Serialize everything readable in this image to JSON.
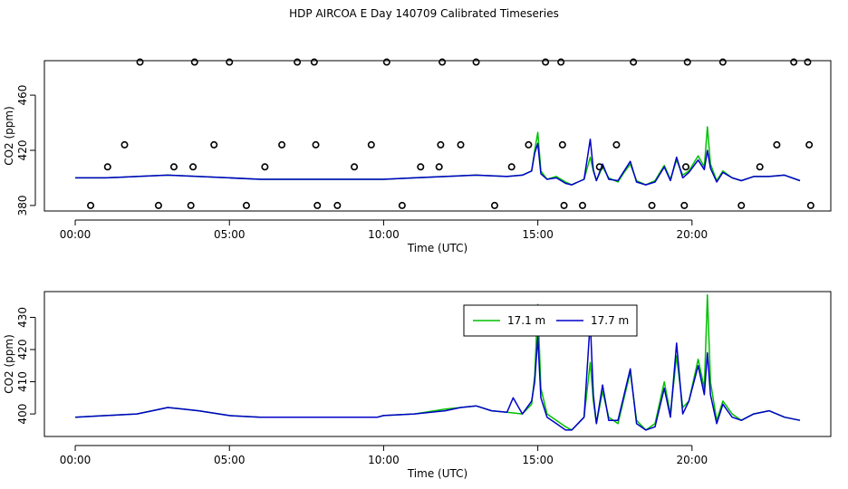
{
  "title": "HDP AIRCOA E  Day 140709  Calibrated Timeseries",
  "chart_data": [
    {
      "type": "scatter",
      "xlabel": "Time (UTC)",
      "ylabel": "CO2 (ppm)",
      "xlim": [
        -1.0,
        24.5
      ],
      "ylim": [
        376.0,
        485.0
      ],
      "xticks": [
        0,
        5,
        10,
        15,
        20
      ],
      "xtick_labels": [
        "00:00",
        "05:00",
        "10:00",
        "15:00",
        "20:00"
      ],
      "yticks": [
        380,
        420,
        460
      ],
      "ytick_labels": [
        "380",
        "420",
        "460"
      ],
      "grid": false,
      "series": [
        {
          "name": "17.1 m",
          "color": "#00c000",
          "style": "line",
          "x": [
            0,
            1,
            2,
            3,
            4,
            5,
            6,
            7,
            8,
            9,
            10,
            11,
            12,
            13,
            14,
            14.5,
            14.8,
            14.9,
            15,
            15.1,
            15.3,
            15.6,
            15.9,
            16.1,
            16.3,
            16.5,
            16.7,
            16.8,
            16.9,
            17.1,
            17.3,
            17.6,
            17.8,
            18,
            18.2,
            18.5,
            18.8,
            19.1,
            19.3,
            19.5,
            19.7,
            19.9,
            20.2,
            20.4,
            20.5,
            20.6,
            20.8,
            21,
            21.3,
            21.6,
            22,
            22.5,
            23,
            23.5
          ],
          "y": [
            400,
            400,
            401,
            402,
            401,
            400,
            399,
            399,
            399,
            399,
            399,
            400,
            401,
            402,
            401,
            402,
            405,
            420,
            433,
            405,
            399,
            401,
            397,
            395,
            397,
            399,
            415,
            405,
            398,
            408,
            400,
            397,
            404,
            410,
            398,
            395,
            398,
            409,
            399,
            413,
            402,
            405,
            416,
            408,
            437,
            410,
            398,
            405,
            400,
            398,
            401,
            401,
            402,
            398
          ]
        },
        {
          "name": "17.7 m",
          "color": "#0000c8",
          "style": "line",
          "x": [
            0,
            1,
            2,
            3,
            4,
            5,
            6,
            7,
            8,
            9,
            10,
            11,
            12,
            13,
            14,
            14.5,
            14.8,
            14.9,
            15,
            15.1,
            15.3,
            15.6,
            15.9,
            16.1,
            16.3,
            16.5,
            16.7,
            16.8,
            16.9,
            17.1,
            17.3,
            17.6,
            17.8,
            18,
            18.2,
            18.5,
            18.8,
            19.1,
            19.3,
            19.5,
            19.7,
            19.9,
            20.2,
            20.4,
            20.5,
            20.6,
            20.8,
            21,
            21.3,
            21.6,
            22,
            22.5,
            23,
            23.5
          ],
          "y": [
            400,
            400,
            401,
            402,
            401,
            400,
            399,
            399,
            399,
            399,
            399,
            400,
            401,
            402,
            401,
            402,
            405,
            418,
            425,
            403,
            399,
            400,
            396,
            395,
            397,
            399,
            428,
            406,
            398,
            410,
            399,
            398,
            405,
            412,
            397,
            395,
            397,
            408,
            398,
            415,
            400,
            404,
            413,
            406,
            420,
            407,
            397,
            404,
            400,
            398,
            401,
            401,
            402,
            398
          ]
        },
        {
          "name": "",
          "color": "#000000",
          "style": "open-circles",
          "x": [
            0.5,
            1.05,
            1.6,
            2.1,
            2.7,
            3.2,
            3.75,
            3.82,
            3.87,
            4.5,
            5.0,
            5.55,
            6.15,
            6.7,
            7.2,
            7.75,
            7.8,
            7.85,
            8.5,
            9.05,
            9.6,
            10.1,
            10.6,
            11.2,
            11.8,
            11.85,
            11.9,
            12.5,
            13.0,
            13.6,
            14.15,
            14.7,
            15.25,
            15.75,
            15.8,
            15.85,
            16.45,
            17.0,
            17.55,
            18.1,
            18.7,
            19.75,
            19.8,
            19.85,
            21.0,
            21.6,
            22.2,
            22.75,
            23.3,
            23.75,
            23.8,
            23.85
          ],
          "y": [
            380,
            408,
            424,
            484,
            380,
            408,
            380,
            408,
            484,
            424,
            484,
            380,
            408,
            424,
            484,
            484,
            424,
            380,
            380,
            408,
            424,
            484,
            380,
            408,
            408,
            424,
            484,
            424,
            484,
            380,
            408,
            424,
            484,
            484,
            424,
            380,
            380,
            408,
            424,
            484,
            380,
            380,
            408,
            484,
            484,
            380,
            408,
            424,
            484,
            484,
            424,
            380
          ]
        }
      ]
    },
    {
      "type": "line",
      "xlabel": "Time (UTC)",
      "ylabel": "CO2 (ppm)",
      "xlim": [
        -1.0,
        24.5
      ],
      "ylim": [
        393.0,
        438.0
      ],
      "xticks": [
        0,
        5,
        10,
        15,
        20
      ],
      "xtick_labels": [
        "00:00",
        "05:00",
        "10:00",
        "15:00",
        "20:00"
      ],
      "yticks": [
        400,
        410,
        420,
        430
      ],
      "ytick_labels": [
        "400",
        "410",
        "420",
        "430"
      ],
      "grid": false,
      "legend_position": "top-center",
      "series": [
        {
          "name": "17.1 m",
          "color": "#00c000",
          "x": [
            0,
            1,
            2,
            2.5,
            3,
            3.5,
            4,
            5,
            6,
            7,
            8,
            9,
            9.8,
            10,
            11,
            12,
            12.5,
            13,
            13.5,
            14,
            14.5,
            14.8,
            14.9,
            15,
            15.1,
            15.3,
            15.6,
            15.9,
            16.1,
            16.3,
            16.5,
            16.7,
            16.8,
            16.9,
            17.1,
            17.3,
            17.6,
            17.8,
            18,
            18.2,
            18.5,
            18.8,
            19.1,
            19.3,
            19.5,
            19.7,
            19.9,
            20.2,
            20.4,
            20.5,
            20.6,
            20.8,
            21,
            21.3,
            21.6,
            22,
            22.5,
            23,
            23.5
          ],
          "y": [
            399,
            399.5,
            400,
            401,
            402,
            401.5,
            401,
            399.5,
            399,
            399,
            399,
            399,
            399,
            399.5,
            400,
            401.5,
            402,
            402.5,
            401,
            400.5,
            400,
            403,
            412,
            434,
            408,
            400,
            398,
            396,
            395,
            397,
            399,
            416,
            404,
            397,
            407,
            399,
            397,
            405,
            413,
            398,
            395,
            397,
            410,
            400,
            418,
            402,
            404,
            417,
            408,
            437,
            410,
            398,
            404,
            400,
            398,
            400,
            401,
            399,
            398
          ]
        },
        {
          "name": "17.7 m",
          "color": "#0000c8",
          "x": [
            0,
            1,
            2,
            2.5,
            3,
            3.5,
            4,
            5,
            6,
            7,
            8,
            9,
            9.8,
            10,
            11,
            12,
            12.5,
            13,
            13.5,
            14,
            14.2,
            14.5,
            14.8,
            14.9,
            15,
            15.1,
            15.3,
            15.6,
            15.9,
            16.1,
            16.3,
            16.5,
            16.7,
            16.8,
            16.9,
            17.1,
            17.3,
            17.6,
            17.8,
            18,
            18.2,
            18.5,
            18.8,
            19.1,
            19.3,
            19.5,
            19.7,
            19.9,
            20.2,
            20.4,
            20.5,
            20.6,
            20.8,
            21,
            21.3,
            21.6,
            22,
            22.5,
            23,
            23.5
          ],
          "y": [
            399,
            399.5,
            400,
            401,
            402,
            401.5,
            401,
            399.5,
            399,
            399,
            399,
            399,
            399,
            399.5,
            400,
            401,
            402,
            402.5,
            401,
            400.5,
            405,
            400,
            404,
            410,
            424,
            405,
            399,
            397,
            395,
            395,
            397,
            399,
            429,
            406,
            397,
            409,
            398,
            398,
            406,
            414,
            397,
            395,
            396,
            408,
            399,
            422,
            400,
            404,
            415,
            406,
            419,
            406,
            397,
            403,
            399,
            398,
            400,
            401,
            399,
            398
          ]
        }
      ]
    }
  ]
}
